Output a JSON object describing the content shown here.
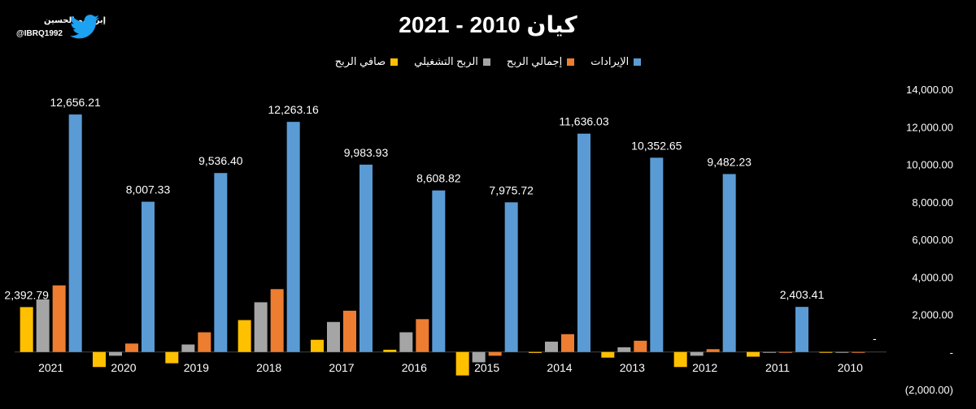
{
  "brand": {
    "name": "إبراهيم الحسين",
    "handle": "@IBRQ1992",
    "icon": "twitter-bird-icon"
  },
  "chart_data": {
    "type": "bar",
    "title": "كيان 2010 - 2021",
    "categories": [
      "2021",
      "2020",
      "2019",
      "2018",
      "2017",
      "2016",
      "2015",
      "2014",
      "2013",
      "2012",
      "2011",
      "2010"
    ],
    "series": [
      {
        "name": "صافي الربح",
        "color": "#FFC000",
        "values": [
          2392.79,
          -800,
          -600,
          1700,
          650,
          120,
          -1250,
          -50,
          -300,
          -800,
          -250,
          -30
        ]
      },
      {
        "name": "الربح التشغيلي",
        "color": "#A5A5A5",
        "values": [
          2800,
          -200,
          400,
          2650,
          1600,
          1050,
          -550,
          550,
          250,
          -200,
          -30,
          -20
        ]
      },
      {
        "name": "إجمالي الربح",
        "color": "#ED7D31",
        "values": [
          3550,
          450,
          1050,
          3350,
          2200,
          1750,
          -200,
          950,
          600,
          150,
          -30,
          -20
        ]
      },
      {
        "name": "الإيرادات",
        "color": "#5B9BD5",
        "values": [
          12656.21,
          8007.33,
          9536.4,
          12263.16,
          9983.93,
          8608.82,
          7975.72,
          11636.03,
          10352.65,
          9482.23,
          2403.41,
          0
        ]
      }
    ],
    "data_labels": [
      {
        "category": "2021",
        "series": "صافي الربح",
        "text": "2,392.79"
      },
      {
        "category": "2021",
        "series": "الإيرادات",
        "text": "12,656.21"
      },
      {
        "category": "2020",
        "series": "الإيرادات",
        "text": "8,007.33"
      },
      {
        "category": "2019",
        "series": "الإيرادات",
        "text": "9,536.40"
      },
      {
        "category": "2018",
        "series": "الإيرادات",
        "text": "12,263.16"
      },
      {
        "category": "2017",
        "series": "الإيرادات",
        "text": "9,983.93"
      },
      {
        "category": "2016",
        "series": "الإيرادات",
        "text": "8,608.82"
      },
      {
        "category": "2015",
        "series": "الإيرادات",
        "text": "7,975.72"
      },
      {
        "category": "2014",
        "series": "الإيرادات",
        "text": "11,636.03"
      },
      {
        "category": "2013",
        "series": "الإيرادات",
        "text": "10,352.65"
      },
      {
        "category": "2012",
        "series": "الإيرادات",
        "text": "9,482.23"
      },
      {
        "category": "2011",
        "series": "الإيرادات",
        "text": "2,403.41"
      },
      {
        "category": "2010",
        "series": "الإيرادات",
        "text": "-"
      }
    ],
    "y_axis": {
      "min": -2000,
      "max": 14000,
      "position": "right",
      "ticks": [
        {
          "value": 14000,
          "label": "14,000.00"
        },
        {
          "value": 12000,
          "label": "12,000.00"
        },
        {
          "value": 10000,
          "label": "10,000.00"
        },
        {
          "value": 8000,
          "label": "8,000.00"
        },
        {
          "value": 6000,
          "label": "6,000.00"
        },
        {
          "value": 4000,
          "label": "4,000.00"
        },
        {
          "value": 2000,
          "label": "2,000.00"
        },
        {
          "value": 0,
          "label": "-"
        },
        {
          "value": -2000,
          "label": "(2,000.00)"
        }
      ]
    },
    "legend_position": "top",
    "grid": false
  }
}
